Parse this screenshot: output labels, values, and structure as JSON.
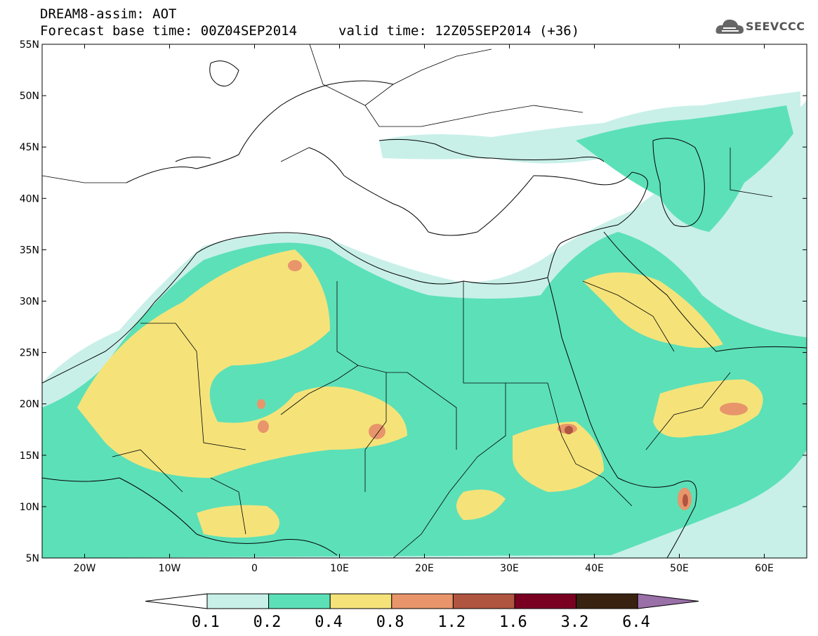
{
  "header": {
    "title_line1": "DREAM8-assim: AOT",
    "title_line2": "Forecast base time: 00Z04SEP2014",
    "valid_time": "valid time: 12Z05SEP2014 (+36)",
    "logo_text": "SEEVCCC"
  },
  "map": {
    "lat_labels": [
      "55N",
      "50N",
      "45N",
      "40N",
      "35N",
      "30N",
      "25N",
      "20N",
      "15N",
      "10N",
      "5N"
    ],
    "lon_labels": [
      "20W",
      "10W",
      "0",
      "10E",
      "20E",
      "30E",
      "40E",
      "50E",
      "60E"
    ],
    "lat_values": [
      55,
      50,
      45,
      40,
      35,
      30,
      25,
      20,
      15,
      10,
      5
    ],
    "lon_values": [
      -20,
      -10,
      0,
      10,
      20,
      30,
      40,
      50,
      60
    ],
    "extent": {
      "lon_min": -25,
      "lon_max": 65,
      "lat_min": 5,
      "lat_max": 55
    }
  },
  "colorbar": {
    "labels": [
      "0.1",
      "0.2",
      "0.4",
      "0.8",
      "1.2",
      "1.6",
      "3.2",
      "6.4"
    ],
    "colors": [
      "#ffffff",
      "#c8f0e8",
      "#5ce0b8",
      "#f5e37a",
      "#e8956b",
      "#b05540",
      "#7a0022",
      "#3a2210",
      "#9a70a8"
    ]
  }
}
